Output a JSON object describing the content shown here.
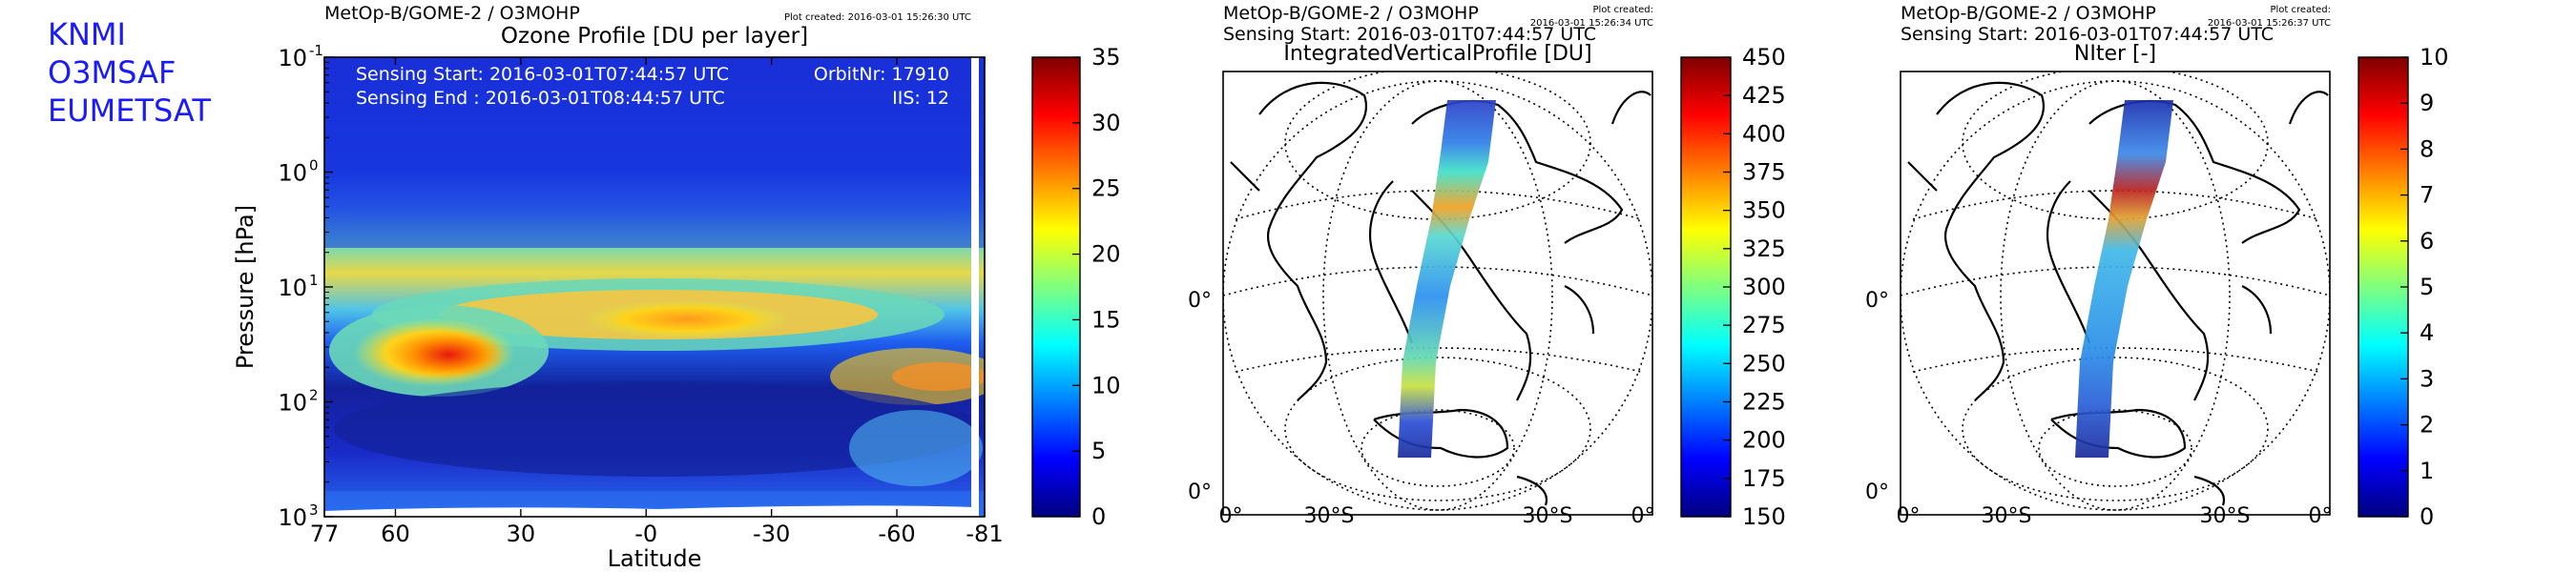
{
  "organizations": [
    "KNMI",
    "O3MSAF",
    "EUMETSAT"
  ],
  "chart_data": [
    {
      "type": "heatmap",
      "header": "MetOp-B/GOME-2 / O3MOHP",
      "plot_created": "Plot created: 2016-03-01 15:26:30 UTC",
      "title": "Ozone Profile [DU per layer]",
      "xlabel": "Latitude",
      "ylabel": "Pressure [hPa]",
      "x_ticks": [
        "77",
        "60",
        "30",
        "-0",
        "-30",
        "-60",
        "-81"
      ],
      "x_tick_values": [
        77,
        60,
        30,
        0,
        -30,
        -60,
        -81
      ],
      "xlim": [
        77,
        -81
      ],
      "y_scale": "log",
      "y_ticks": [
        "10",
        "10",
        "10",
        "10",
        "10"
      ],
      "y_tick_exponents": [
        "-1",
        "0",
        "1",
        "2",
        "3"
      ],
      "ylim": [
        1000,
        0.1
      ],
      "info_left": [
        "Sensing Start: 2016-03-01T07:44:57 UTC",
        "Sensing End  : 2016-03-01T08:44:57 UTC"
      ],
      "info_right": [
        "OrbitNr: 17910",
        "IIS: 12"
      ],
      "colorbar": {
        "min": 0,
        "max": 35,
        "ticks": [
          "0",
          "5",
          "10",
          "15",
          "20",
          "25",
          "30",
          "35"
        ]
      },
      "features": [
        {
          "lat": 45,
          "hPa": 40,
          "value": 32
        },
        {
          "lat": 0,
          "hPa": 20,
          "value": 20
        },
        {
          "lat": -20,
          "hPa": 20,
          "value": 20
        },
        {
          "lat": -70,
          "hPa": 50,
          "value": 18
        }
      ]
    },
    {
      "type": "map",
      "header": "MetOp-B/GOME-2 / O3MOHP",
      "plot_created_label": "Plot created:",
      "plot_created": "2016-03-01 15:26:34 UTC",
      "sensing_start": "Sensing Start: 2016-03-01T07:44:57 UTC",
      "title": "IntegratedVerticalProfile [DU]",
      "lon_labels": [
        "0°",
        "30°S",
        "30°S",
        "0°"
      ],
      "lat_labels": [
        "0°",
        "0°"
      ],
      "colorbar": {
        "min": 150,
        "max": 450,
        "ticks": [
          "150",
          "175",
          "200",
          "225",
          "250",
          "275",
          "300",
          "325",
          "350",
          "375",
          "400",
          "425",
          "450"
        ]
      }
    },
    {
      "type": "map",
      "header": "MetOp-B/GOME-2 / O3MOHP",
      "plot_created_label": "Plot created:",
      "plot_created": "2016-03-01 15:26:37 UTC",
      "sensing_start": "Sensing Start: 2016-03-01T07:44:57 UTC",
      "title": "NIter [-]",
      "lon_labels": [
        "0°",
        "30°S",
        "30°S",
        "0°"
      ],
      "lat_labels": [
        "0°",
        "0°"
      ],
      "colorbar": {
        "min": 0,
        "max": 10,
        "ticks": [
          "0",
          "1",
          "2",
          "3",
          "4",
          "5",
          "6",
          "7",
          "8",
          "9",
          "10"
        ]
      }
    }
  ]
}
